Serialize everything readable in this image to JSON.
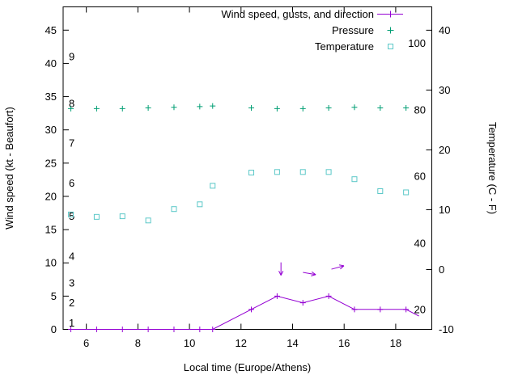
{
  "chart_data": {
    "type": "line",
    "title": "",
    "xlabel": "Local time (Europe/Athens)",
    "ylabel": "Wind speed (kt - Beaufort)",
    "y2label": "Temperature (C - F)",
    "xlim": [
      5.1,
      19.4
    ],
    "ylim": [
      0,
      48.5
    ],
    "y2lim": [
      -10,
      43.9
    ],
    "x_ticks": [
      6,
      8,
      10,
      12,
      14,
      16,
      18
    ],
    "y_ticks": [
      0,
      5,
      10,
      15,
      20,
      25,
      30,
      35,
      40,
      45
    ],
    "y2_ticks": [
      -10,
      0,
      10,
      20,
      30,
      40
    ],
    "grid": false,
    "legend_position": "top-right-inside",
    "beaufort_scale": {
      "values": [
        "1",
        "2",
        "3",
        "4",
        "5",
        "6",
        "7",
        "8",
        "9"
      ],
      "kt_position": [
        1,
        4,
        7,
        11,
        17,
        22,
        28,
        34,
        41
      ]
    },
    "fahrenheit_scale": {
      "values": [
        "20",
        "40",
        "60",
        "80",
        "100"
      ],
      "celsius_position": [
        -6.7,
        4.4,
        15.6,
        26.7,
        37.8
      ]
    },
    "series": [
      {
        "id": "wind",
        "name": "Wind speed, gusts, and direction",
        "color": "#9400d3",
        "marker": "plus",
        "line": true,
        "axis": "left",
        "markers_skip_last": true,
        "x": [
          5.4,
          6.4,
          7.4,
          8.4,
          9.4,
          10.4,
          10.9,
          12.4,
          13.4,
          14.4,
          15.4,
          16.4,
          17.4,
          18.4,
          18.9
        ],
        "y": [
          0,
          0,
          0,
          0,
          0,
          0,
          0,
          3,
          5,
          4,
          5,
          3,
          3,
          3,
          2
        ]
      },
      {
        "id": "pressure",
        "name": "Pressure",
        "color": "#009e73",
        "marker": "plus",
        "line": false,
        "axis": "left",
        "markers_skip_last": false,
        "x": [
          5.4,
          6.4,
          7.4,
          8.4,
          9.4,
          10.4,
          10.9,
          12.4,
          13.4,
          14.4,
          15.4,
          16.4,
          17.4,
          18.4
        ],
        "y": [
          33.2,
          33.2,
          33.2,
          33.3,
          33.4,
          33.5,
          33.6,
          33.3,
          33.2,
          33.2,
          33.3,
          33.4,
          33.3,
          33.3
        ]
      },
      {
        "id": "temperature",
        "name": "Temperature",
        "color": "#5bc8c8",
        "marker": "open-square",
        "line": false,
        "axis": "right",
        "markers_skip_last": false,
        "x": [
          5.4,
          6.4,
          7.4,
          8.4,
          9.4,
          10.4,
          10.9,
          12.4,
          13.4,
          14.4,
          15.4,
          16.4,
          17.4,
          18.4
        ],
        "y": [
          9.2,
          8.8,
          8.9,
          8.2,
          10.1,
          10.9,
          14.0,
          16.2,
          16.3,
          16.3,
          16.3,
          15.1,
          13.1,
          12.9
        ]
      }
    ],
    "wind_arrows": [
      {
        "x": 13.55,
        "y": 9.1,
        "dir_deg": 270
      },
      {
        "x": 14.65,
        "y": 8.4,
        "dir_deg": 350
      },
      {
        "x": 15.75,
        "y": 9.3,
        "dir_deg": 15
      }
    ]
  }
}
